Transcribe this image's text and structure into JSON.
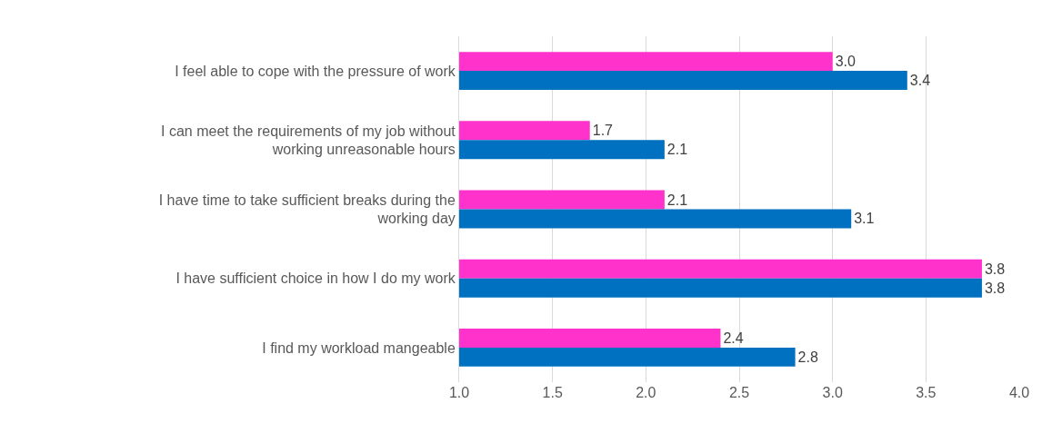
{
  "chart_data": {
    "type": "bar",
    "orientation": "horizontal",
    "categories": [
      "I feel able to cope with the pressure of work",
      "I can meet the requirements of my job without working unreasonable hours",
      "I have time to take sufficient breaks during the working day",
      "I have sufficient choice in how I do my work",
      "I find my workload mangeable"
    ],
    "series": [
      {
        "color": "#ff33cc",
        "values": [
          3.0,
          1.7,
          2.1,
          3.8,
          2.4
        ],
        "value_labels": [
          "3.0",
          "1.7",
          "2.1",
          "3.8",
          "2.4"
        ]
      },
      {
        "color": "#0070c0",
        "values": [
          3.4,
          2.1,
          3.1,
          3.8,
          2.8
        ],
        "value_labels": [
          "3.4",
          "2.1",
          "3.1",
          "3.8",
          "2.8"
        ]
      }
    ],
    "xlim": [
      1,
      4
    ],
    "xticks": [
      {
        "value": 1,
        "label": "1.0"
      },
      {
        "value": 1.5,
        "label": "1.5"
      },
      {
        "value": 2,
        "label": "2.0"
      },
      {
        "value": 2.5,
        "label": "2.5"
      },
      {
        "value": 3,
        "label": "3.0"
      },
      {
        "value": 3.5,
        "label": "3.5"
      },
      {
        "value": 4,
        "label": "4.0"
      }
    ],
    "grid": "x"
  }
}
